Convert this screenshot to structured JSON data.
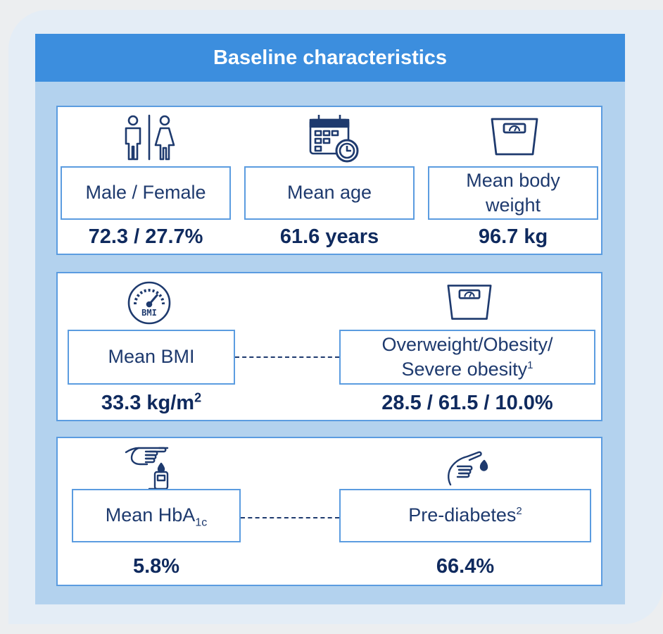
{
  "header": {
    "title": "Baseline characteristics"
  },
  "row1": {
    "sex": {
      "icon": "male-female-icon",
      "label": "Male / Female",
      "value": "72.3 / 27.7%"
    },
    "age": {
      "icon": "calendar-clock-icon",
      "label": "Mean age",
      "value": "61.6 years"
    },
    "weight": {
      "icon": "scale-icon",
      "label": "Mean body weight",
      "value": "96.7 kg"
    }
  },
  "row2": {
    "bmi": {
      "icon": "bmi-gauge-icon",
      "icon_text": "BMI",
      "label": "Mean BMI",
      "value_prefix": "33.3 kg/m",
      "value_sup": "2"
    },
    "obesity": {
      "icon": "scale-icon",
      "label_line1": "Overweight/Obesity/",
      "label_line2": "Severe obesity",
      "label_sup": "1",
      "value": "28.5 / 61.5 / 10.0%"
    }
  },
  "row3": {
    "hba1c": {
      "icon": "glucose-meter-icon",
      "label": "Mean HbA",
      "label_sub": "1c",
      "value": "5.8%"
    },
    "prediabetes": {
      "icon": "finger-blood-drop-icon",
      "label": "Pre-diabetes",
      "label_sup": "2",
      "value": "66.4%"
    }
  },
  "colors": {
    "header": "#3c8ede",
    "panel": "#b3d2ee",
    "border": "#5b9ce0",
    "text": "#1e3a6e",
    "value": "#0f2a5e"
  }
}
